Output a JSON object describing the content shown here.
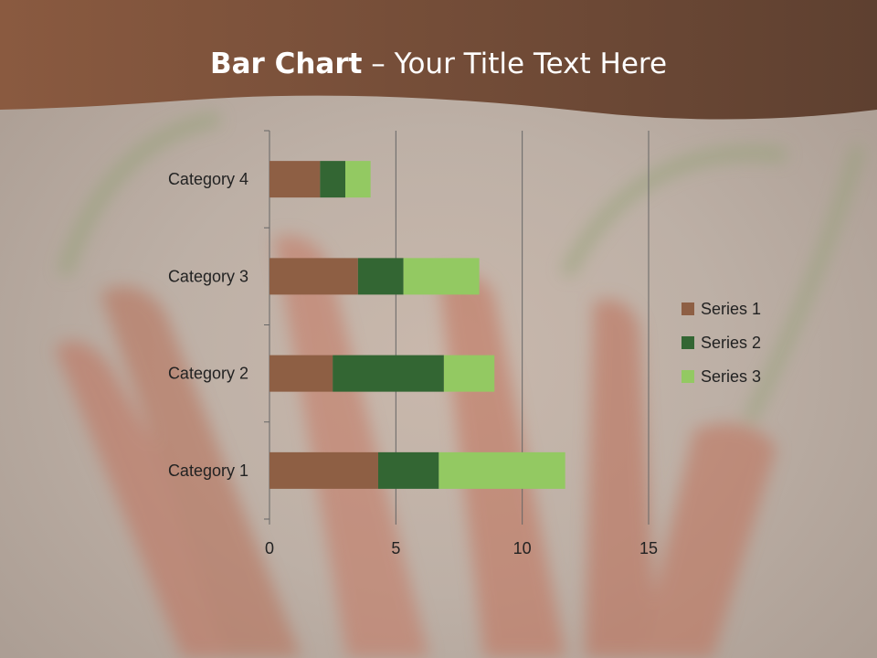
{
  "slide": {
    "title_bold": "Bar Chart",
    "title_rest": " – Your Title Text Here"
  },
  "chart_data": {
    "type": "bar",
    "orientation": "horizontal",
    "stacked": true,
    "categories": [
      "Category 1",
      "Category 2",
      "Category 3",
      "Category 4"
    ],
    "series": [
      {
        "name": "Series 1",
        "values": [
          4.3,
          2.5,
          3.5,
          2
        ],
        "color": "#8e5f44"
      },
      {
        "name": "Series 2",
        "values": [
          2.4,
          4.4,
          1.8,
          1
        ],
        "color": "#336633"
      },
      {
        "name": "Series 3",
        "values": [
          5,
          2,
          3,
          1
        ],
        "color": "#93c962"
      }
    ],
    "xlim": [
      0,
      15
    ],
    "xticks": [
      0,
      5,
      10,
      15
    ],
    "grid": true,
    "legend": "right"
  }
}
